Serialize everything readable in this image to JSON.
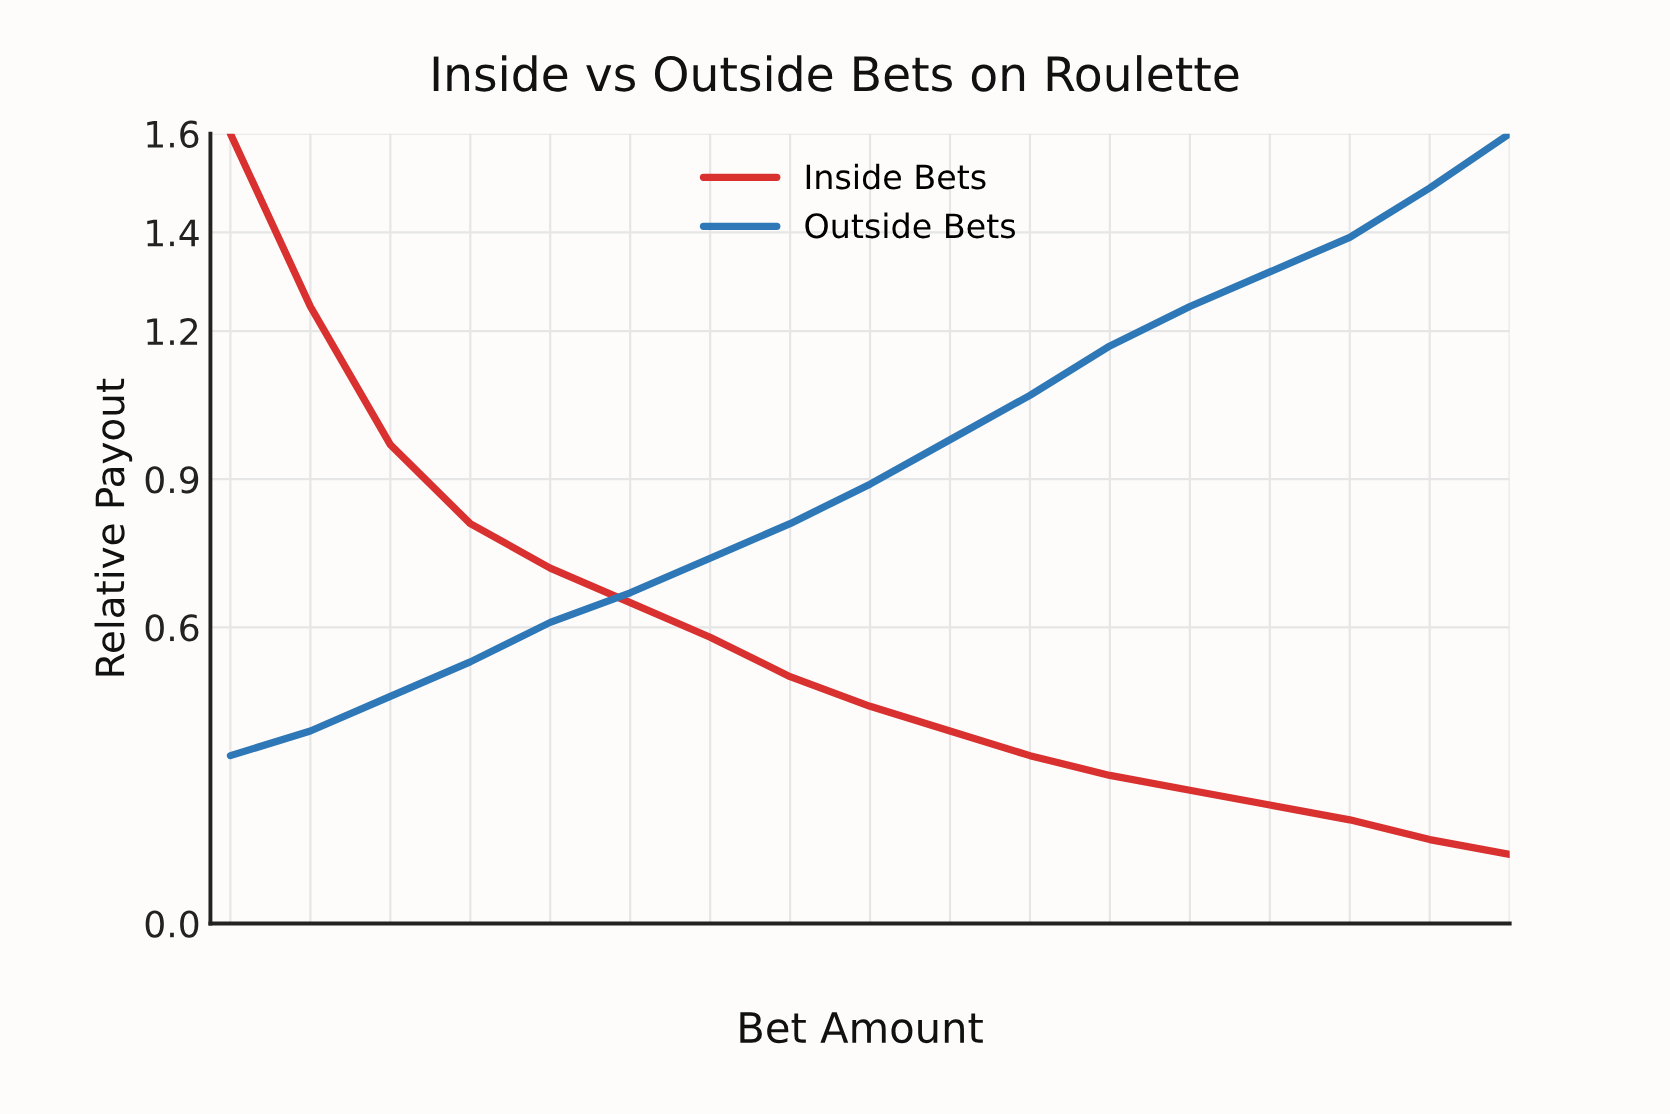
{
  "chart_data": {
    "type": "line",
    "title": "Inside vs Outside Bets on Roulette",
    "xlabel": "Bet Amount",
    "ylabel": "Relative Payout",
    "categories": [
      null,
      null,
      null,
      null,
      null,
      null,
      null,
      null,
      null,
      null,
      null,
      null,
      null,
      null,
      null,
      null,
      null
    ],
    "ylim": [
      0,
      1.6
    ],
    "yticks": [
      {
        "value": 0,
        "label": "0.0"
      },
      0.6,
      0.9,
      1.2,
      1.4,
      1.6
    ],
    "grid": true,
    "legend": "top",
    "marker": "none",
    "line_style": "solid",
    "series": [
      {
        "name": "Inside Bets",
        "color": "#d93030",
        "values": [
          1.6,
          1.25,
          0.97,
          0.81,
          0.72,
          0.65,
          0.58,
          0.5,
          0.44,
          0.39,
          0.34,
          0.3,
          0.27,
          0.24,
          0.21,
          0.17,
          0.14
        ]
      },
      {
        "name": "Outside Bets",
        "color": "#2f78b7",
        "values": [
          0.34,
          0.39,
          0.46,
          0.53,
          0.61,
          0.67,
          0.74,
          0.81,
          0.89,
          0.98,
          1.07,
          1.17,
          1.25,
          1.32,
          1.39,
          1.49,
          1.6
        ]
      }
    ]
  }
}
